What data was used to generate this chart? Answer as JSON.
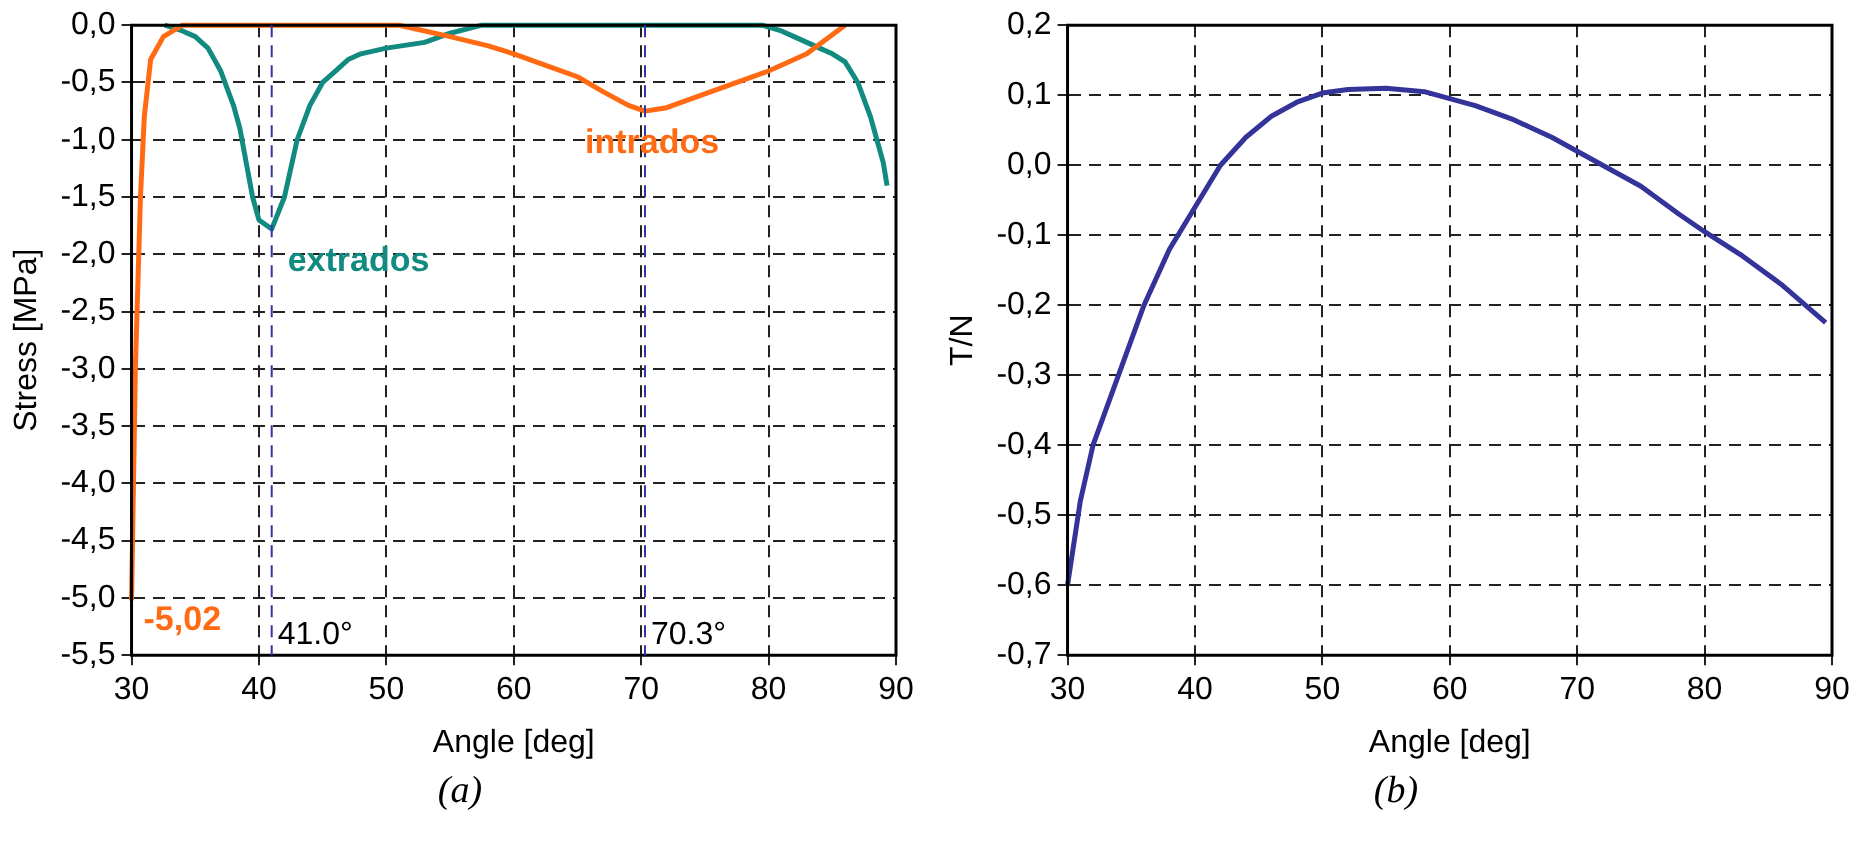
{
  "chart_data": [
    {
      "type": "line",
      "xlabel": "Angle [deg]",
      "ylabel": "Stress [MPa]",
      "xlim": [
        30,
        90
      ],
      "xticks": [
        30,
        40,
        50,
        60,
        70,
        80,
        90
      ],
      "ylim": [
        -5.5,
        0
      ],
      "yticks": [
        {
          "value": 0,
          "label": "0,0"
        },
        {
          "value": -0.5,
          "label": "-0,5"
        },
        {
          "value": -1,
          "label": "-1,0"
        },
        {
          "value": -1.5,
          "label": "-1,5"
        },
        {
          "value": -2,
          "label": "-2,0"
        },
        {
          "value": -2.5,
          "label": "-2,5"
        },
        {
          "value": -3,
          "label": "-3,0"
        },
        {
          "value": -3.5,
          "label": "-3,5"
        },
        {
          "value": -4,
          "label": "-4,0"
        },
        {
          "value": -4.5,
          "label": "-4,5"
        },
        {
          "value": -5,
          "label": "-5,0"
        },
        {
          "value": -5.5,
          "label": "-5,5"
        }
      ],
      "grid": true,
      "legend": false,
      "marker": "none",
      "line_style": "solid",
      "series": [
        {
          "name": "intrados",
          "color": "#ff6a13",
          "x": [
            30,
            30.3,
            30.7,
            31,
            31.5,
            32.5,
            34,
            51,
            55,
            58,
            60,
            63,
            65,
            67,
            69,
            70.3,
            72,
            75,
            78,
            80,
            83,
            86
          ],
          "values": [
            -5.02,
            -3,
            -1.5,
            -0.8,
            -0.3,
            -0.1,
            0,
            0,
            -0.1,
            -0.18,
            -0.25,
            -0.37,
            -0.45,
            -0.58,
            -0.7,
            -0.75,
            -0.72,
            -0.6,
            -0.48,
            -0.4,
            -0.25,
            0
          ]
        },
        {
          "name": "extrados",
          "color": "#118a80",
          "x": [
            32.6,
            34,
            35,
            36,
            37,
            38,
            38.5,
            39,
            39.5,
            40,
            41,
            42,
            43,
            44,
            45,
            46,
            47,
            48,
            50,
            53,
            55,
            57.5,
            79.5,
            81,
            82,
            83,
            84,
            85,
            86,
            87,
            88,
            88.5,
            89,
            89.3
          ],
          "values": [
            0,
            -0.05,
            -0.1,
            -0.2,
            -0.4,
            -0.7,
            -0.9,
            -1.2,
            -1.5,
            -1.7,
            -1.78,
            -1.5,
            -1.0,
            -0.7,
            -0.5,
            -0.4,
            -0.3,
            -0.25,
            -0.2,
            -0.15,
            -0.07,
            0,
            0,
            -0.05,
            -0.1,
            -0.15,
            -0.2,
            -0.25,
            -0.32,
            -0.5,
            -0.8,
            -1,
            -1.2,
            -1.4
          ]
        }
      ],
      "ref_lines": [
        {
          "axis": "x",
          "value": 41.0,
          "label": "41.0°",
          "color": "#3333aa",
          "line_style": "dashed"
        },
        {
          "axis": "x",
          "value": 70.3,
          "label": "70.3°",
          "color": "#3333aa",
          "line_style": "dashed"
        }
      ],
      "annotations": [
        {
          "text": "-5,02",
          "x": 30,
          "y": -5.02
        },
        "(a)"
      ]
    },
    {
      "type": "line",
      "xlabel": "Angle [deg]",
      "ylabel": "T/N",
      "xlim": [
        30,
        90
      ],
      "xticks": [
        30,
        40,
        50,
        60,
        70,
        80,
        90
      ],
      "ylim": [
        -0.7,
        0.2
      ],
      "yticks": [
        {
          "value": 0.2,
          "label": "0,2"
        },
        {
          "value": 0.1,
          "label": "0,1"
        },
        {
          "value": 0,
          "label": "0,0"
        },
        {
          "value": -0.1,
          "label": "-0,1"
        },
        {
          "value": -0.2,
          "label": "-0,2"
        },
        {
          "value": -0.3,
          "label": "-0,3"
        },
        {
          "value": -0.4,
          "label": "-0,4"
        },
        {
          "value": -0.5,
          "label": "-0,5"
        },
        {
          "value": -0.6,
          "label": "-0,6"
        },
        {
          "value": -0.7,
          "label": "-0,7"
        }
      ],
      "grid": true,
      "legend": false,
      "marker": "none",
      "line_style": "solid",
      "series": [
        {
          "color": "#333399",
          "x": [
            30,
            31,
            32,
            34,
            36,
            38,
            40,
            42,
            44,
            46,
            48,
            50,
            52,
            55,
            58,
            60,
            62,
            65,
            68,
            70,
            72,
            75,
            78,
            80,
            83,
            86,
            89.5
          ],
          "values": [
            -0.6,
            -0.48,
            -0.4,
            -0.3,
            -0.2,
            -0.12,
            -0.06,
            0,
            0.04,
            0.07,
            0.09,
            0.103,
            0.108,
            0.11,
            0.105,
            0.095,
            0.085,
            0.065,
            0.04,
            0.02,
            0,
            -0.03,
            -0.07,
            -0.095,
            -0.13,
            -0.17,
            -0.225
          ]
        }
      ],
      "annotations": [
        "(b)"
      ]
    }
  ]
}
